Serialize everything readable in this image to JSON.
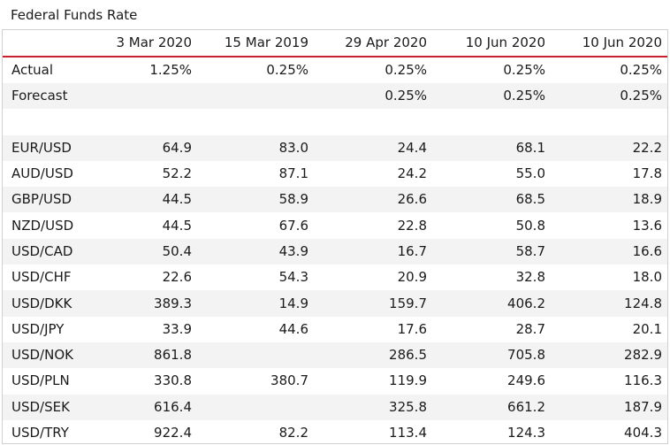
{
  "title": "Federal Funds Rate",
  "chart_data": {
    "type": "table",
    "title": "Federal Funds Rate",
    "columns": [
      "3 Mar 2020",
      "15 Mar 2019",
      "29 Apr 2020",
      "10 Jun 2020",
      "10 Jun 2020"
    ],
    "rows": [
      {
        "label": "Actual",
        "values": [
          "1.25%",
          "0.25%",
          "0.25%",
          "0.25%",
          "0.25%"
        ]
      },
      {
        "label": "Forecast",
        "values": [
          "",
          "",
          "0.25%",
          "0.25%",
          "0.25%"
        ]
      },
      {
        "label": "",
        "values": [
          "",
          "",
          "",
          "",
          ""
        ]
      },
      {
        "label": "EUR/USD",
        "values": [
          "64.9",
          "83.0",
          "24.4",
          "68.1",
          "22.2"
        ]
      },
      {
        "label": "AUD/USD",
        "values": [
          "52.2",
          "87.1",
          "24.2",
          "55.0",
          "17.8"
        ]
      },
      {
        "label": "GBP/USD",
        "values": [
          "44.5",
          "58.9",
          "26.6",
          "68.5",
          "18.9"
        ]
      },
      {
        "label": "NZD/USD",
        "values": [
          "44.5",
          "67.6",
          "22.8",
          "50.8",
          "13.6"
        ]
      },
      {
        "label": "USD/CAD",
        "values": [
          "50.4",
          "43.9",
          "16.7",
          "58.7",
          "16.6"
        ]
      },
      {
        "label": "USD/CHF",
        "values": [
          "22.6",
          "54.3",
          "20.9",
          "32.8",
          "18.0"
        ]
      },
      {
        "label": "USD/DKK",
        "values": [
          "389.3",
          "14.9",
          "159.7",
          "406.2",
          "124.8"
        ]
      },
      {
        "label": "USD/JPY",
        "values": [
          "33.9",
          "44.6",
          "17.6",
          "28.7",
          "20.1"
        ]
      },
      {
        "label": "USD/NOK",
        "values": [
          "861.8",
          "",
          "286.5",
          "705.8",
          "282.9"
        ]
      },
      {
        "label": "USD/PLN",
        "values": [
          "330.8",
          "380.7",
          "119.9",
          "249.6",
          "116.3"
        ]
      },
      {
        "label": "USD/SEK",
        "values": [
          "616.4",
          "",
          "325.8",
          "661.2",
          "187.9"
        ]
      },
      {
        "label": "USD/TRY",
        "values": [
          "922.4",
          "82.2",
          "113.4",
          "124.3",
          "404.3"
        ]
      }
    ],
    "colors": {
      "header_rule": "#c8202f",
      "row_stripe": "#f3f3f3"
    }
  }
}
